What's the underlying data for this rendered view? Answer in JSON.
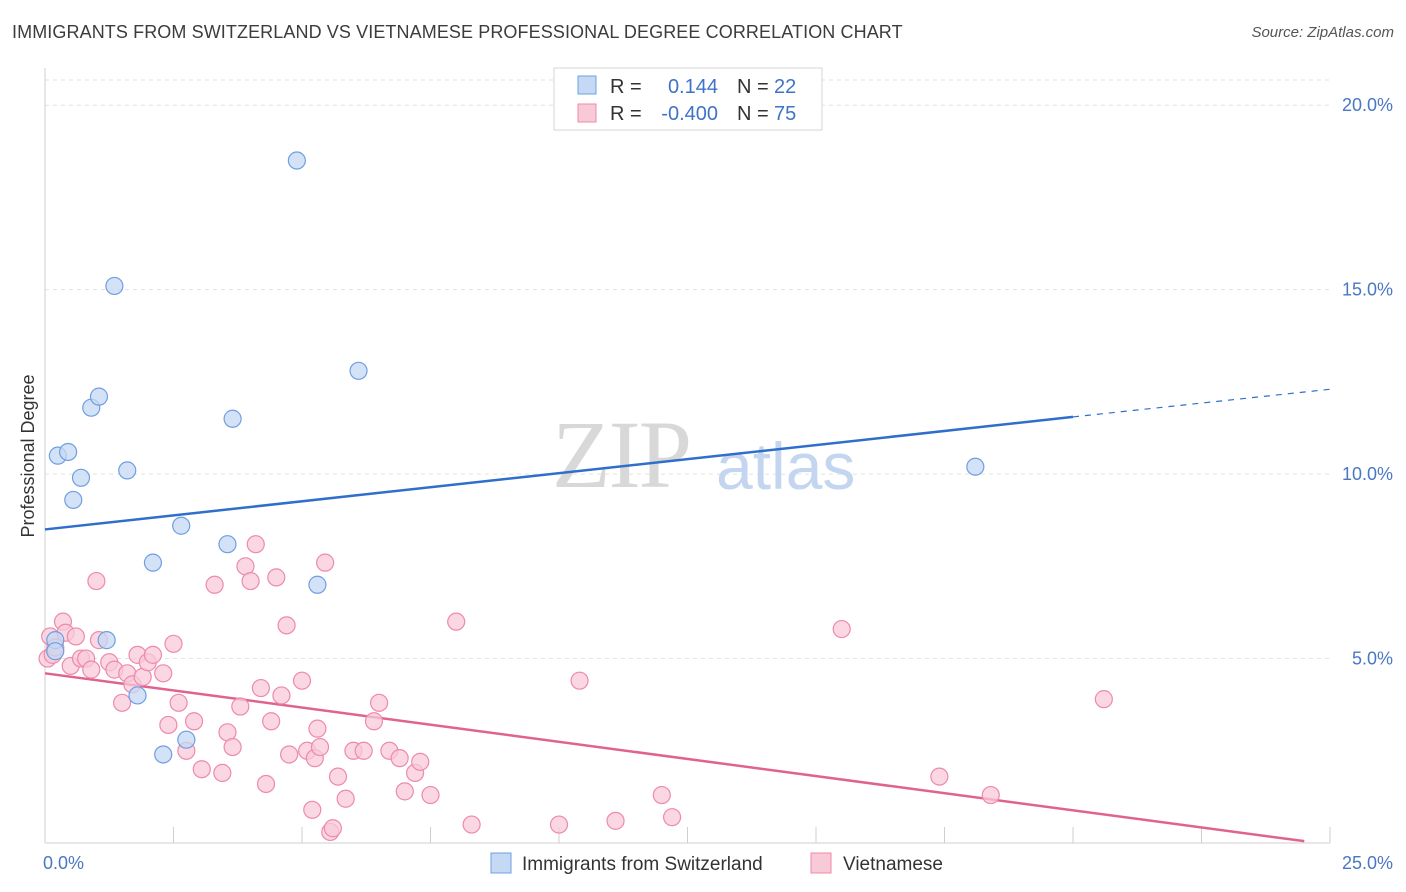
{
  "title": "IMMIGRANTS FROM SWITZERLAND VS VIETNAMESE PROFESSIONAL DEGREE CORRELATION CHART",
  "source": "Source: ZipAtlas.com",
  "watermark": {
    "zip": "ZIP",
    "atlas": "atlas"
  },
  "chart_data": {
    "type": "scatter",
    "ylabel": "Professional Degree",
    "xlim": [
      0,
      25
    ],
    "ylim": [
      0,
      20.9
    ],
    "x_tick_labels": [
      "0.0%",
      "25.0%"
    ],
    "y_ticks": [
      {
        "value": 5,
        "label": "5.0%"
      },
      {
        "value": 10,
        "label": "10.0%"
      },
      {
        "value": 15,
        "label": "15.0%"
      },
      {
        "value": 20,
        "label": "20.0%"
      }
    ],
    "legend": [
      {
        "r_label": "R =",
        "r_value": "0.144",
        "n_label": "N =",
        "n_value": "22",
        "color": "#6f9fe0"
      },
      {
        "r_label": "R =",
        "r_value": "-0.400",
        "n_label": "N =",
        "n_value": "75",
        "color": "#ee8aaa"
      }
    ],
    "series": [
      {
        "name": "Immigrants from Switzerland",
        "color": "#6f9fe0",
        "trend": {
          "x0": 0,
          "y0": 8.5,
          "x1": 20,
          "y1": 11.55,
          "dash_to_x": 25,
          "dash_to_y": 12.3
        },
        "points": [
          [
            0.2,
            5.5
          ],
          [
            0.2,
            5.2
          ],
          [
            0.25,
            10.5
          ],
          [
            0.45,
            10.6
          ],
          [
            0.55,
            9.3
          ],
          [
            0.7,
            9.9
          ],
          [
            0.9,
            11.8
          ],
          [
            1.05,
            12.1
          ],
          [
            1.2,
            5.5
          ],
          [
            1.35,
            15.1
          ],
          [
            1.6,
            10.1
          ],
          [
            1.8,
            4.0
          ],
          [
            2.1,
            7.6
          ],
          [
            2.3,
            2.4
          ],
          [
            2.65,
            8.6
          ],
          [
            2.75,
            2.8
          ],
          [
            3.55,
            8.1
          ],
          [
            3.65,
            11.5
          ],
          [
            4.9,
            18.5
          ],
          [
            5.3,
            7.0
          ],
          [
            6.1,
            12.8
          ],
          [
            18.1,
            10.2
          ]
        ]
      },
      {
        "name": "Vietnamese",
        "color": "#ee8aaa",
        "trend": {
          "x0": 0,
          "y0": 4.6,
          "x1": 24.5,
          "y1": 0.05
        },
        "points": [
          [
            0.05,
            5.0
          ],
          [
            0.1,
            5.6
          ],
          [
            0.15,
            5.1
          ],
          [
            0.2,
            5.3
          ],
          [
            0.35,
            6.0
          ],
          [
            0.4,
            5.7
          ],
          [
            0.5,
            4.8
          ],
          [
            0.6,
            5.6
          ],
          [
            0.7,
            5.0
          ],
          [
            0.8,
            5.0
          ],
          [
            0.9,
            4.7
          ],
          [
            1.0,
            7.1
          ],
          [
            1.05,
            5.5
          ],
          [
            1.25,
            4.9
          ],
          [
            1.35,
            4.7
          ],
          [
            1.5,
            3.8
          ],
          [
            1.6,
            4.6
          ],
          [
            1.7,
            4.3
          ],
          [
            1.8,
            5.1
          ],
          [
            1.9,
            4.5
          ],
          [
            2.0,
            4.9
          ],
          [
            2.1,
            5.1
          ],
          [
            2.3,
            4.6
          ],
          [
            2.4,
            3.2
          ],
          [
            2.5,
            5.4
          ],
          [
            2.6,
            3.8
          ],
          [
            2.75,
            2.5
          ],
          [
            2.9,
            3.3
          ],
          [
            3.05,
            2.0
          ],
          [
            3.3,
            7.0
          ],
          [
            3.45,
            1.9
          ],
          [
            3.55,
            3.0
          ],
          [
            3.65,
            2.6
          ],
          [
            3.8,
            3.7
          ],
          [
            3.9,
            7.5
          ],
          [
            4.0,
            7.1
          ],
          [
            4.1,
            8.1
          ],
          [
            4.2,
            4.2
          ],
          [
            4.3,
            1.6
          ],
          [
            4.4,
            3.3
          ],
          [
            4.5,
            7.2
          ],
          [
            4.6,
            4.0
          ],
          [
            4.7,
            5.9
          ],
          [
            4.75,
            2.4
          ],
          [
            5.0,
            4.4
          ],
          [
            5.1,
            2.5
          ],
          [
            5.2,
            0.9
          ],
          [
            5.25,
            2.3
          ],
          [
            5.3,
            3.1
          ],
          [
            5.35,
            2.6
          ],
          [
            5.45,
            7.6
          ],
          [
            5.55,
            0.3
          ],
          [
            5.6,
            0.4
          ],
          [
            5.7,
            1.8
          ],
          [
            5.85,
            1.2
          ],
          [
            6.0,
            2.5
          ],
          [
            6.2,
            2.5
          ],
          [
            6.4,
            3.3
          ],
          [
            6.5,
            3.8
          ],
          [
            6.7,
            2.5
          ],
          [
            6.9,
            2.3
          ],
          [
            7.0,
            1.4
          ],
          [
            7.2,
            1.9
          ],
          [
            7.3,
            2.2
          ],
          [
            7.5,
            1.3
          ],
          [
            8.0,
            6.0
          ],
          [
            8.3,
            0.5
          ],
          [
            10.0,
            0.5
          ],
          [
            10.4,
            4.4
          ],
          [
            11.1,
            0.6
          ],
          [
            12.0,
            1.3
          ],
          [
            12.2,
            0.7
          ],
          [
            15.5,
            5.8
          ],
          [
            17.4,
            1.8
          ],
          [
            18.4,
            1.3
          ],
          [
            20.6,
            3.9
          ]
        ]
      }
    ]
  }
}
